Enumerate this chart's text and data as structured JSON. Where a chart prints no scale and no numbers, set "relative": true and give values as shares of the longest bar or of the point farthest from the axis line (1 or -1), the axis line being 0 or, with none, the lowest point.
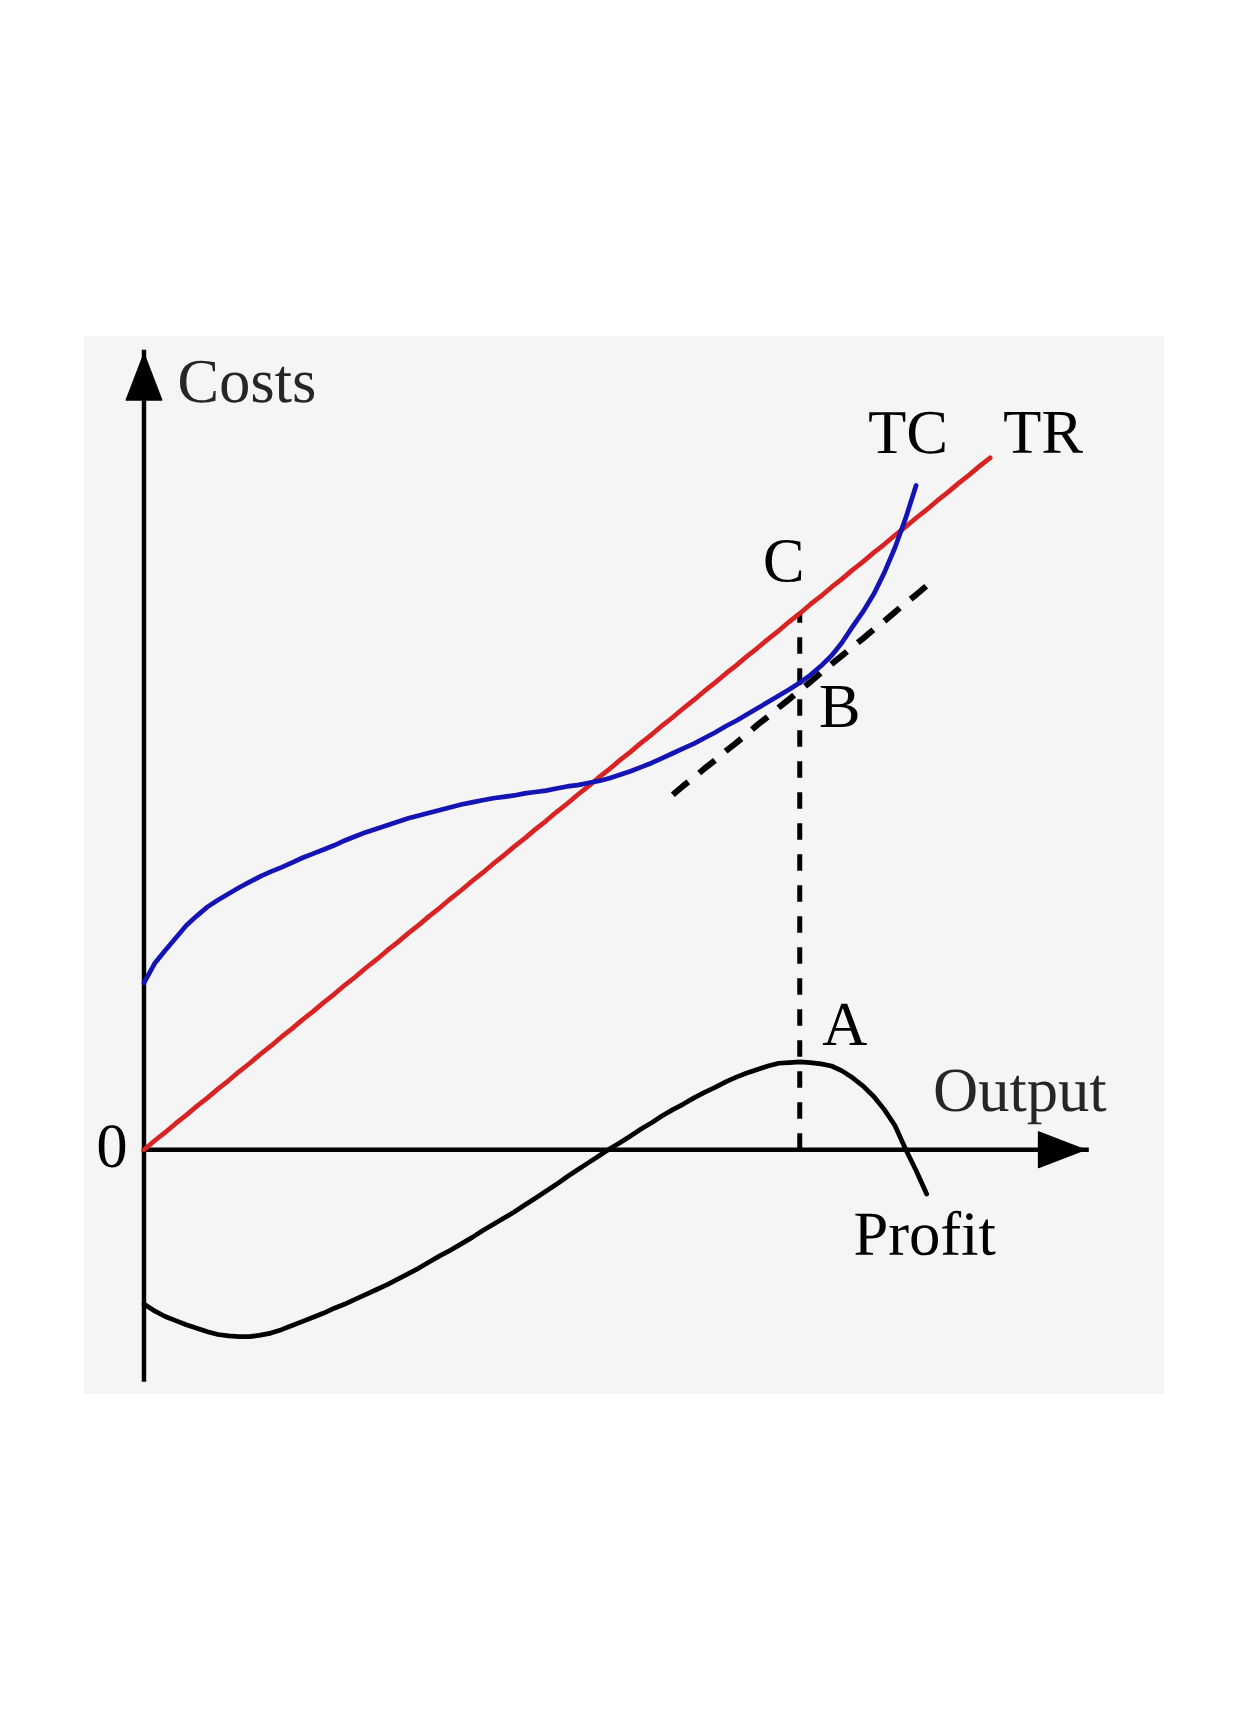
{
  "chart_data": {
    "type": "line",
    "relative": true,
    "categories": [
      null,
      null,
      null,
      null,
      null,
      null,
      null,
      null,
      null,
      null,
      null,
      null,
      null,
      null,
      null,
      null,
      null,
      null,
      null,
      null,
      null,
      null,
      null,
      null,
      null,
      null,
      null,
      null,
      null,
      null,
      null,
      null,
      null,
      null,
      null,
      null,
      null,
      null,
      null,
      null,
      null,
      null,
      null,
      null,
      null,
      null,
      null,
      null,
      null,
      null,
      null,
      null,
      null,
      null,
      null,
      null,
      null,
      null,
      null,
      null,
      null,
      null,
      null,
      null,
      null,
      null,
      null,
      null,
      null,
      null,
      null,
      null,
      null,
      null,
      null,
      null,
      null,
      null,
      null,
      null,
      null
    ],
    "series": [
      {
        "name": "TR",
        "color": "#d92323",
        "values": [
          0,
          0.013,
          0.025,
          0.038,
          0.05,
          0.063,
          0.075,
          0.088,
          0.1,
          0.113,
          0.125,
          0.138,
          0.15,
          0.163,
          0.175,
          0.188,
          0.2,
          0.213,
          0.225,
          0.238,
          0.25,
          0.263,
          0.275,
          0.288,
          0.3,
          0.313,
          0.325,
          0.338,
          0.35,
          0.363,
          0.375,
          0.388,
          0.4,
          0.413,
          0.425,
          0.438,
          0.45,
          0.463,
          0.475,
          0.488,
          0.5,
          0.513,
          0.525,
          0.538,
          0.55,
          0.563,
          0.575,
          0.588,
          0.6,
          0.613,
          0.625,
          0.638,
          0.65,
          0.663,
          0.675,
          0.688,
          0.7,
          0.713,
          0.725,
          0.738,
          0.75,
          0.763,
          0.775,
          0.788,
          0.8,
          0.813,
          0.825,
          0.838,
          0.85,
          0.863,
          0.875,
          0.888,
          0.9,
          0.913,
          0.925,
          0.938,
          0.95,
          0.963,
          0.975,
          0.988,
          1
        ]
      },
      {
        "name": "TC",
        "color": "#1414b4",
        "values": [
          0.241,
          0.269,
          0.288,
          0.306,
          0.324,
          0.338,
          0.351,
          0.361,
          0.37,
          0.379,
          0.387,
          0.395,
          0.402,
          0.408,
          0.415,
          0.422,
          0.428,
          0.434,
          0.44,
          0.447,
          0.453,
          0.459,
          0.464,
          0.469,
          0.474,
          0.479,
          0.483,
          0.487,
          0.491,
          0.495,
          0.499,
          0.502,
          0.505,
          0.508,
          0.51,
          0.512,
          0.515,
          0.517,
          0.519,
          0.522,
          0.525,
          0.527,
          0.53,
          0.533,
          0.537,
          0.542,
          0.547,
          0.553,
          0.559,
          0.566,
          0.573,
          0.58,
          0.587,
          0.595,
          0.603,
          0.612,
          0.62,
          0.629,
          0.638,
          0.647,
          0.656,
          0.665,
          0.675,
          0.686,
          0.699,
          0.714,
          0.733,
          0.756,
          0.778,
          0.803,
          0.834,
          0.87,
          0.912,
          0.96,
          null,
          null,
          null,
          null,
          null,
          null,
          null
        ]
      },
      {
        "name": "Profit",
        "color": "#000000",
        "values": [
          -0.223,
          -0.233,
          -0.241,
          -0.247,
          -0.253,
          -0.258,
          -0.263,
          -0.267,
          -0.269,
          -0.27,
          -0.27,
          -0.268,
          -0.265,
          -0.26,
          -0.254,
          -0.248,
          -0.242,
          -0.236,
          -0.229,
          -0.223,
          -0.216,
          -0.209,
          -0.202,
          -0.195,
          -0.187,
          -0.179,
          -0.171,
          -0.162,
          -0.153,
          -0.145,
          -0.136,
          -0.127,
          -0.117,
          -0.108,
          -0.099,
          -0.09,
          -0.08,
          -0.07,
          -0.06,
          -0.05,
          -0.039,
          -0.029,
          -0.019,
          -0.009,
          0.001,
          0.01,
          0.02,
          0.03,
          0.039,
          0.049,
          0.058,
          0.066,
          0.075,
          0.083,
          0.09,
          0.098,
          0.105,
          0.111,
          0.116,
          0.121,
          0.125,
          0.126,
          0.127,
          0.126,
          0.124,
          0.121,
          0.114,
          0.104,
          0.092,
          0.077,
          0.058,
          0.035,
          0.001,
          -0.03,
          -0.064,
          null,
          null,
          null,
          null,
          null,
          null
        ]
      },
      {
        "color": "#000000",
        "line_style": "dashed",
        "values": [
          null,
          null,
          null,
          null,
          null,
          null,
          null,
          null,
          null,
          null,
          null,
          null,
          null,
          null,
          null,
          null,
          null,
          null,
          null,
          null,
          null,
          null,
          null,
          null,
          null,
          null,
          null,
          null,
          null,
          null,
          null,
          null,
          null,
          null,
          null,
          null,
          null,
          null,
          null,
          null,
          null,
          null,
          null,
          null,
          null,
          null,
          null,
          null,
          null,
          null,
          0.513,
          0.526,
          0.538,
          0.551,
          0.563,
          0.576,
          0.588,
          0.601,
          0.614,
          0.626,
          0.639,
          0.651,
          0.664,
          0.676,
          0.689,
          0.702,
          0.714,
          0.727,
          0.739,
          0.752,
          0.764,
          0.777,
          0.79,
          0.802,
          0.815,
          null,
          null,
          null,
          null,
          null,
          null
        ]
      }
    ],
    "xlabel": "Output",
    "ylabel": "Costs",
    "annotations": [
      "0",
      "C",
      "B",
      "A"
    ]
  }
}
